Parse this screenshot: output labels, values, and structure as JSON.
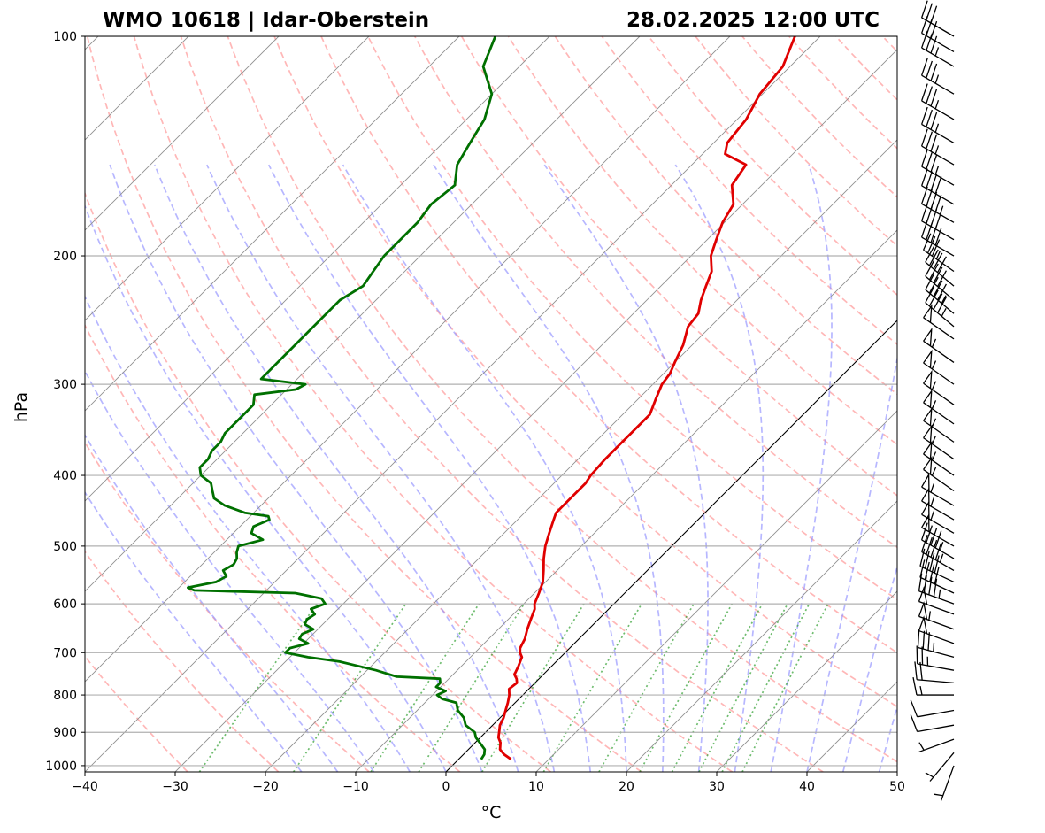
{
  "chart_data": {
    "type": "line",
    "title_left": "WMO 10618 | Idar-Oberstein",
    "title_right": "28.02.2025 12:00 UTC",
    "xlabel": "°C",
    "ylabel": "hPa",
    "xlim": [
      -40,
      50
    ],
    "ylim": [
      1020,
      100
    ],
    "y_scale": "log",
    "x_ticks": [
      -40,
      -30,
      -20,
      -10,
      0,
      10,
      20,
      30,
      40,
      50
    ],
    "x_tick_labels": [
      "−40",
      "−30",
      "−20",
      "−10",
      "0",
      "10",
      "20",
      "30",
      "40",
      "50"
    ],
    "y_ticks": [
      1000,
      900,
      800,
      700,
      600,
      500,
      400,
      300,
      200,
      100
    ],
    "y_tick_labels": [
      "1000",
      "900",
      "800",
      "700",
      "600",
      "500",
      "400",
      "300",
      "200",
      "100"
    ],
    "grid": true,
    "colors": {
      "temperature": "#e00000",
      "dewpoint": "#007000",
      "dry_adiabats": "#ff9090",
      "moist_adiabats": "#9090ff",
      "mixing_ratio": "#30a030",
      "isotherms": "#909090",
      "wind_barbs": "#000000"
    },
    "series": [
      {
        "key": "temperature",
        "pressure": [
          980,
          965,
          950,
          930,
          915,
          900,
          880,
          860,
          840,
          820,
          800,
          785,
          770,
          760,
          750,
          730,
          710,
          700,
          690,
          670,
          650,
          630,
          610,
          600,
          580,
          560,
          540,
          520,
          500,
          480,
          460,
          450,
          430,
          410,
          400,
          380,
          360,
          345,
          330,
          315,
          300,
          290,
          280,
          265,
          250,
          240,
          230,
          220,
          210,
          200,
          190,
          180,
          170,
          160,
          150,
          145,
          140,
          130,
          120,
          110,
          100
        ],
        "values": [
          5.8,
          4.5,
          3.5,
          2.8,
          2.0,
          1.5,
          0.8,
          0.4,
          -0.2,
          -0.8,
          -1.5,
          -2.2,
          -2.0,
          -2.5,
          -3.2,
          -3.7,
          -4.3,
          -5.0,
          -5.5,
          -6.0,
          -6.8,
          -7.5,
          -8.2,
          -8.8,
          -9.5,
          -10.3,
          -11.5,
          -12.8,
          -14.0,
          -15.0,
          -16.0,
          -16.5,
          -16.5,
          -16.5,
          -16.8,
          -17.0,
          -17.0,
          -17.0,
          -17.0,
          -18.0,
          -19.0,
          -19.3,
          -20.0,
          -21.0,
          -22.5,
          -22.8,
          -24.0,
          -25.0,
          -26.0,
          -27.8,
          -29.0,
          -30.2,
          -31.0,
          -33.3,
          -34.0,
          -37.5,
          -38.5,
          -39.0,
          -40.3,
          -40.8,
          -42.8
        ]
      },
      {
        "key": "dewpoint",
        "pressure": [
          980,
          965,
          950,
          930,
          915,
          900,
          880,
          860,
          840,
          820,
          810,
          800,
          790,
          780,
          770,
          760,
          755,
          740,
          730,
          720,
          710,
          700,
          690,
          680,
          670,
          660,
          650,
          640,
          630,
          620,
          610,
          600,
          590,
          580,
          575,
          570,
          560,
          550,
          540,
          530,
          520,
          510,
          500,
          490,
          480,
          470,
          460,
          455,
          450,
          440,
          430,
          420,
          410,
          400,
          390,
          380,
          370,
          360,
          350,
          340,
          330,
          320,
          310,
          305,
          300,
          295,
          290,
          280,
          270,
          260,
          250,
          240,
          230,
          220,
          210,
          200,
          190,
          180,
          170,
          160,
          150,
          140,
          130,
          120,
          110,
          100
        ],
        "values": [
          2.5,
          2.3,
          1.8,
          0.5,
          -0.5,
          -1.2,
          -3.0,
          -4.0,
          -5.5,
          -6.5,
          -8.5,
          -9.5,
          -9.0,
          -10.5,
          -10.5,
          -11.0,
          -16.0,
          -19.0,
          -21.5,
          -24.0,
          -28.0,
          -31.0,
          -31.0,
          -29.5,
          -31.0,
          -31.2,
          -30.5,
          -32.0,
          -32.3,
          -32.0,
          -33.0,
          -32.0,
          -33.0,
          -36.5,
          -48.0,
          -49.0,
          -46.5,
          -46.0,
          -47.0,
          -46.5,
          -46.8,
          -47.5,
          -48.0,
          -46.0,
          -48.0,
          -48.5,
          -47.5,
          -48.0,
          -51.0,
          -54.0,
          -56.0,
          -57.0,
          -58.0,
          -60.0,
          -61.0,
          -61.0,
          -61.5,
          -61.5,
          -62.0,
          -62.0,
          -62.0,
          -62.0,
          -63.0,
          -59.0,
          -58.5,
          -64.0,
          -64.0,
          -64.0,
          -64.0,
          -64.0,
          -64.0,
          -64.0,
          -64.0,
          -63.0,
          -63.5,
          -64.0,
          -64.0,
          -64.0,
          -64.5,
          -64.0,
          -66.0,
          -67.0,
          -68.0,
          -70.0,
          -74.0,
          -76.0
        ]
      }
    ],
    "wind_barbs": {
      "pressure": [
        1000,
        960,
        920,
        880,
        840,
        800,
        770,
        740,
        710,
        680,
        650,
        620,
        600,
        580,
        560,
        540,
        520,
        500,
        480,
        460,
        440,
        420,
        400,
        380,
        360,
        340,
        320,
        300,
        280,
        260,
        250,
        240,
        230,
        220,
        210,
        200,
        190,
        180,
        170,
        160,
        150,
        140,
        130,
        120,
        110,
        105,
        100
      ],
      "speed_kt": [
        5,
        5,
        5,
        10,
        10,
        15,
        20,
        25,
        35,
        50,
        55,
        50,
        45,
        40,
        40,
        45,
        45,
        50,
        55,
        55,
        55,
        55,
        55,
        55,
        55,
        55,
        55,
        55,
        55,
        50,
        45,
        45,
        40,
        40,
        35,
        40,
        40,
        45,
        40,
        35,
        35,
        35,
        35,
        35,
        35,
        30,
        30
      ],
      "direction_deg": [
        200,
        220,
        250,
        260,
        260,
        270,
        275,
        280,
        285,
        290,
        290,
        290,
        290,
        295,
        295,
        300,
        300,
        300,
        300,
        300,
        300,
        305,
        305,
        305,
        305,
        305,
        305,
        305,
        305,
        305,
        310,
        310,
        310,
        310,
        305,
        300,
        300,
        300,
        300,
        300,
        300,
        300,
        300,
        300,
        300,
        300,
        300
      ]
    }
  }
}
